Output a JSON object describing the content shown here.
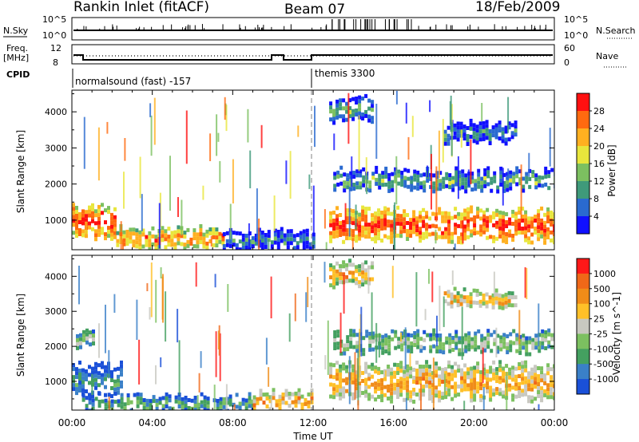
{
  "header": {
    "station": "Rankin Inlet (fitACF)",
    "beam": "Beam 07",
    "date": "18/Feb/2009"
  },
  "strip_labels": {
    "nsky": "N.Sky",
    "nsky_ticks": [
      "10^5",
      "10^0"
    ],
    "nsearch": "N.Search",
    "nsearch_ticks": [
      "10^5",
      "10^0"
    ],
    "freq": "Freq.",
    "freq_unit": "[MHz]",
    "freq_ticks": [
      "12",
      "8"
    ],
    "nave": "Nave",
    "nave_ticks": [
      "60",
      "0"
    ],
    "cpid": "CPID"
  },
  "cpid_segments": [
    {
      "label": "normalsound (fast) -157",
      "start_hour": 0
    },
    {
      "label": "themis 3300",
      "start_hour": 12
    }
  ],
  "chart_data": [
    {
      "type": "heatmap",
      "title": "Power",
      "xlabel": "",
      "ylabel": "Slant Range [km]",
      "x_range_hours": [
        0,
        24
      ],
      "ylim": [
        180,
        4600
      ],
      "y_ticks": [
        1000,
        2000,
        3000,
        4000
      ],
      "colorbar_label": "Power [dB]",
      "colorbar_ticks": [
        "4",
        "8",
        "12",
        "16",
        "20",
        "24",
        "28"
      ],
      "colorbar_colors": [
        "#1010ff",
        "#2a6ad0",
        "#3f9a7a",
        "#7cc060",
        "#e8e63c",
        "#ffb020",
        "#ff6a10",
        "#ff1010"
      ],
      "features": [
        {
          "start_hour": 0.0,
          "end_hour": 2.2,
          "range_lo": 600,
          "range_hi": 1400,
          "level": 7
        },
        {
          "start_hour": 2.2,
          "end_hour": 7.5,
          "range_lo": 300,
          "range_hi": 800,
          "level": 6
        },
        {
          "start_hour": 7.5,
          "end_hour": 12.0,
          "range_lo": 250,
          "range_hi": 700,
          "level": 2
        },
        {
          "start_hour": 12.8,
          "end_hour": 24.0,
          "range_lo": 500,
          "range_hi": 1300,
          "level": 7
        },
        {
          "start_hour": 13.0,
          "end_hour": 24.0,
          "range_lo": 1900,
          "range_hi": 2400,
          "level": 3
        },
        {
          "start_hour": 18.5,
          "end_hour": 22.0,
          "range_lo": 3200,
          "range_hi": 3700,
          "level": 2
        },
        {
          "start_hour": 12.8,
          "end_hour": 15.0,
          "range_lo": 3800,
          "range_hi": 4400,
          "level": 3
        }
      ]
    },
    {
      "type": "heatmap",
      "title": "Velocity",
      "xlabel": "Time UT",
      "ylabel": "Slant Range [km]",
      "x_range_hours": [
        0,
        24
      ],
      "x_ticks": [
        "00:00",
        "04:00",
        "08:00",
        "12:00",
        "16:00",
        "20:00",
        "00:00"
      ],
      "ylim": [
        180,
        4600
      ],
      "y_ticks": [
        1000,
        2000,
        3000,
        4000
      ],
      "colorbar_label": "Velocity [m s^-1]",
      "colorbar_ticks": [
        "1000",
        "500",
        "100",
        "25",
        "-25",
        "-100",
        "-500",
        "-1000"
      ],
      "colorbar_colors": [
        "#1a50d8",
        "#3a80c8",
        "#44a060",
        "#7cc060",
        "#c8c8c0",
        "#ffc028",
        "#f08c18",
        "#f06818",
        "#ff1818"
      ],
      "features": [
        {
          "start_hour": 0.0,
          "end_hour": 2.5,
          "range_lo": 600,
          "range_hi": 1500,
          "level": 2
        },
        {
          "start_hour": 0.5,
          "end_hour": 9.0,
          "range_lo": 200,
          "range_hi": 600,
          "level": 3
        },
        {
          "start_hour": 9.0,
          "end_hour": 12.0,
          "range_lo": 250,
          "range_hi": 700,
          "level": 6
        },
        {
          "start_hour": 12.8,
          "end_hour": 24.0,
          "range_lo": 500,
          "range_hi": 1500,
          "level": 6
        },
        {
          "start_hour": 13.0,
          "end_hour": 24.0,
          "range_lo": 1900,
          "range_hi": 2400,
          "level": 4
        },
        {
          "start_hour": 18.5,
          "end_hour": 22.0,
          "range_lo": 3200,
          "range_hi": 3600,
          "level": 6
        },
        {
          "start_hour": 12.8,
          "end_hour": 15.0,
          "range_lo": 3800,
          "range_hi": 4400,
          "level": 6
        },
        {
          "start_hour": 0.2,
          "end_hour": 1.0,
          "range_lo": 2000,
          "range_hi": 2400,
          "level": 4
        }
      ]
    }
  ]
}
